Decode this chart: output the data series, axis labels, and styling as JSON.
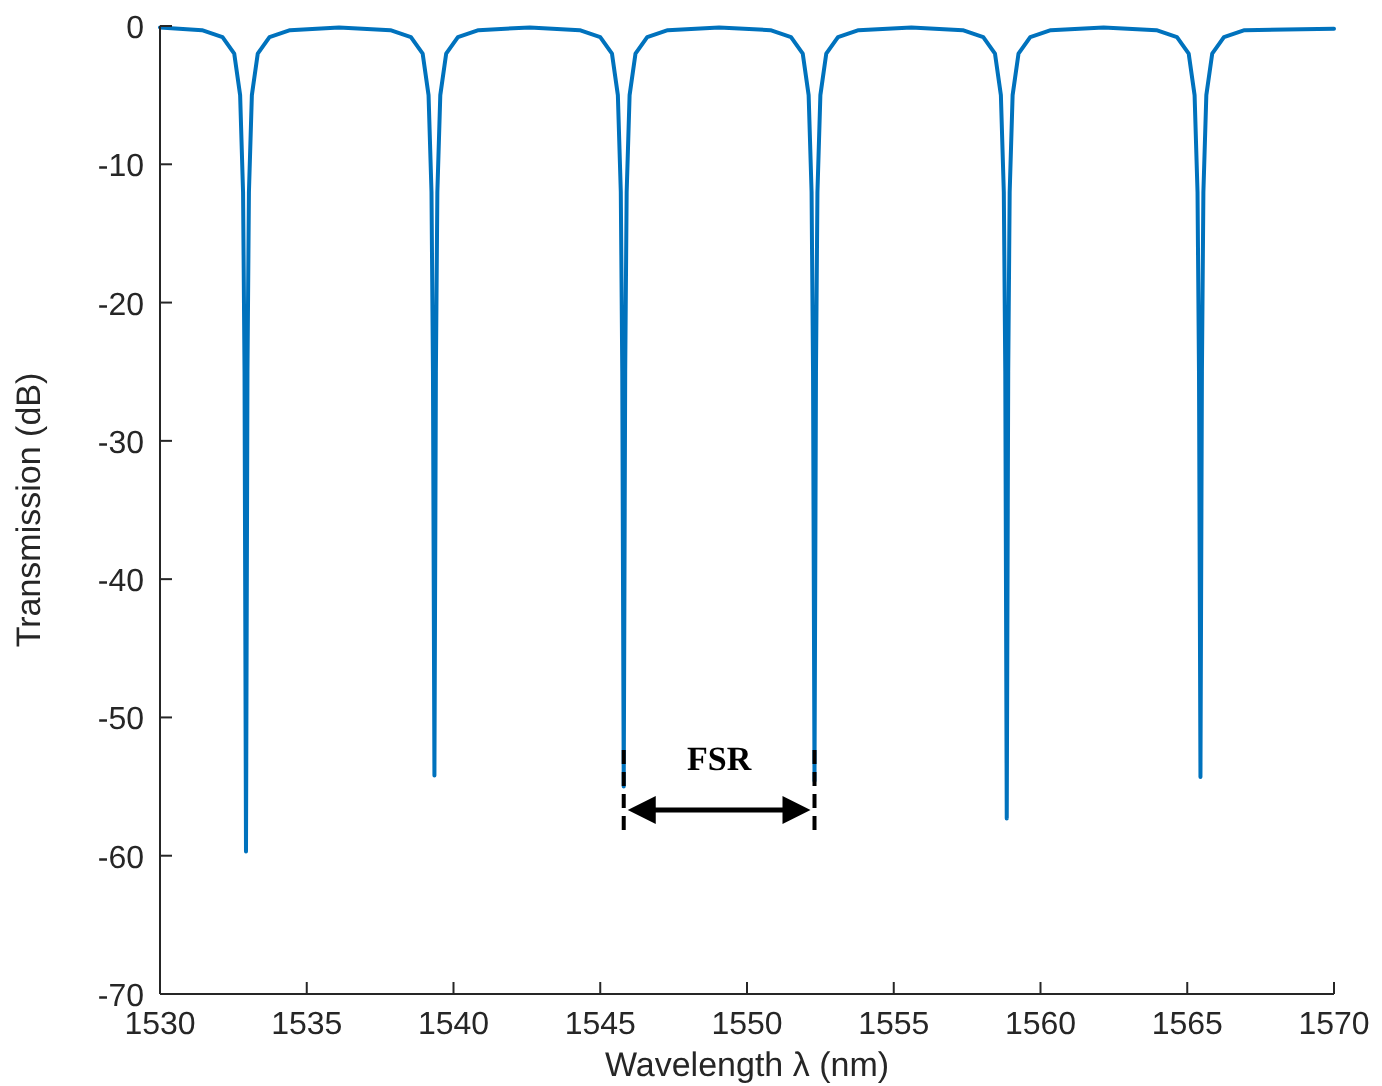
{
  "chart_data": {
    "type": "line",
    "xlabel": "Wavelength λ (nm)",
    "ylabel": "Transmission (dB)",
    "xlim": [
      1530,
      1570
    ],
    "ylim": [
      -70,
      0
    ],
    "xticks": [
      1530,
      1535,
      1540,
      1545,
      1550,
      1555,
      1560,
      1565,
      1570
    ],
    "yticks": [
      -70,
      -60,
      -50,
      -40,
      -30,
      -20,
      -10,
      0
    ],
    "grid": false,
    "line_style": "solid",
    "marker": "none",
    "annotations": [
      "FSR"
    ],
    "series": [
      {
        "color": "#0072bd",
        "x": [
          1530,
          1531.43,
          1532.13,
          1532.53,
          1532.73,
          1532.83,
          1532.88,
          1532.93,
          1532.98,
          1533.03,
          1533.13,
          1533.33,
          1533.73,
          1534.43,
          1536.1,
          1537.85,
          1538.55,
          1538.95,
          1539.15,
          1539.25,
          1539.3,
          1539.35,
          1539.4,
          1539.45,
          1539.55,
          1539.75,
          1540.15,
          1540.85,
          1542.6,
          1544.3,
          1545.0,
          1545.4,
          1545.6,
          1545.7,
          1545.75,
          1545.8,
          1545.85,
          1545.9,
          1546.0,
          1546.2,
          1546.6,
          1547.3,
          1549.05,
          1550.8,
          1551.5,
          1551.9,
          1552.1,
          1552.2,
          1552.25,
          1552.3,
          1552.35,
          1552.4,
          1552.5,
          1552.7,
          1553.1,
          1553.8,
          1555.6,
          1557.35,
          1558.05,
          1558.45,
          1558.65,
          1558.75,
          1558.8,
          1558.85,
          1558.9,
          1558.95,
          1559.05,
          1559.25,
          1559.65,
          1560.35,
          1562.15,
          1563.95,
          1564.65,
          1565.05,
          1565.25,
          1565.35,
          1565.4,
          1565.45,
          1565.5,
          1565.55,
          1565.65,
          1565.85,
          1566.25,
          1566.95,
          1570
        ],
        "values": [
          -0.1,
          -0.3,
          -0.8,
          -2,
          -5,
          -12,
          -25,
          -59.7,
          -25,
          -12,
          -5,
          -2,
          -0.8,
          -0.3,
          -0.1,
          -0.3,
          -0.8,
          -2,
          -5,
          -12,
          -25,
          -54.2,
          -25,
          -12,
          -5,
          -2,
          -0.8,
          -0.3,
          -0.1,
          -0.3,
          -0.8,
          -2,
          -5,
          -12,
          -25,
          -55,
          -25,
          -12,
          -5,
          -2,
          -0.8,
          -0.3,
          -0.1,
          -0.3,
          -0.8,
          -2,
          -5,
          -12,
          -25,
          -54.6,
          -25,
          -12,
          -5,
          -2,
          -0.8,
          -0.3,
          -0.1,
          -0.3,
          -0.8,
          -2,
          -5,
          -12,
          -25,
          -57.3,
          -25,
          -12,
          -5,
          -2,
          -0.8,
          -0.3,
          -0.1,
          -0.3,
          -0.8,
          -2,
          -5,
          -12,
          -25,
          -54.3,
          -25,
          -12,
          -5,
          -2,
          -0.8,
          -0.3,
          -0.2
        ]
      }
    ]
  }
}
